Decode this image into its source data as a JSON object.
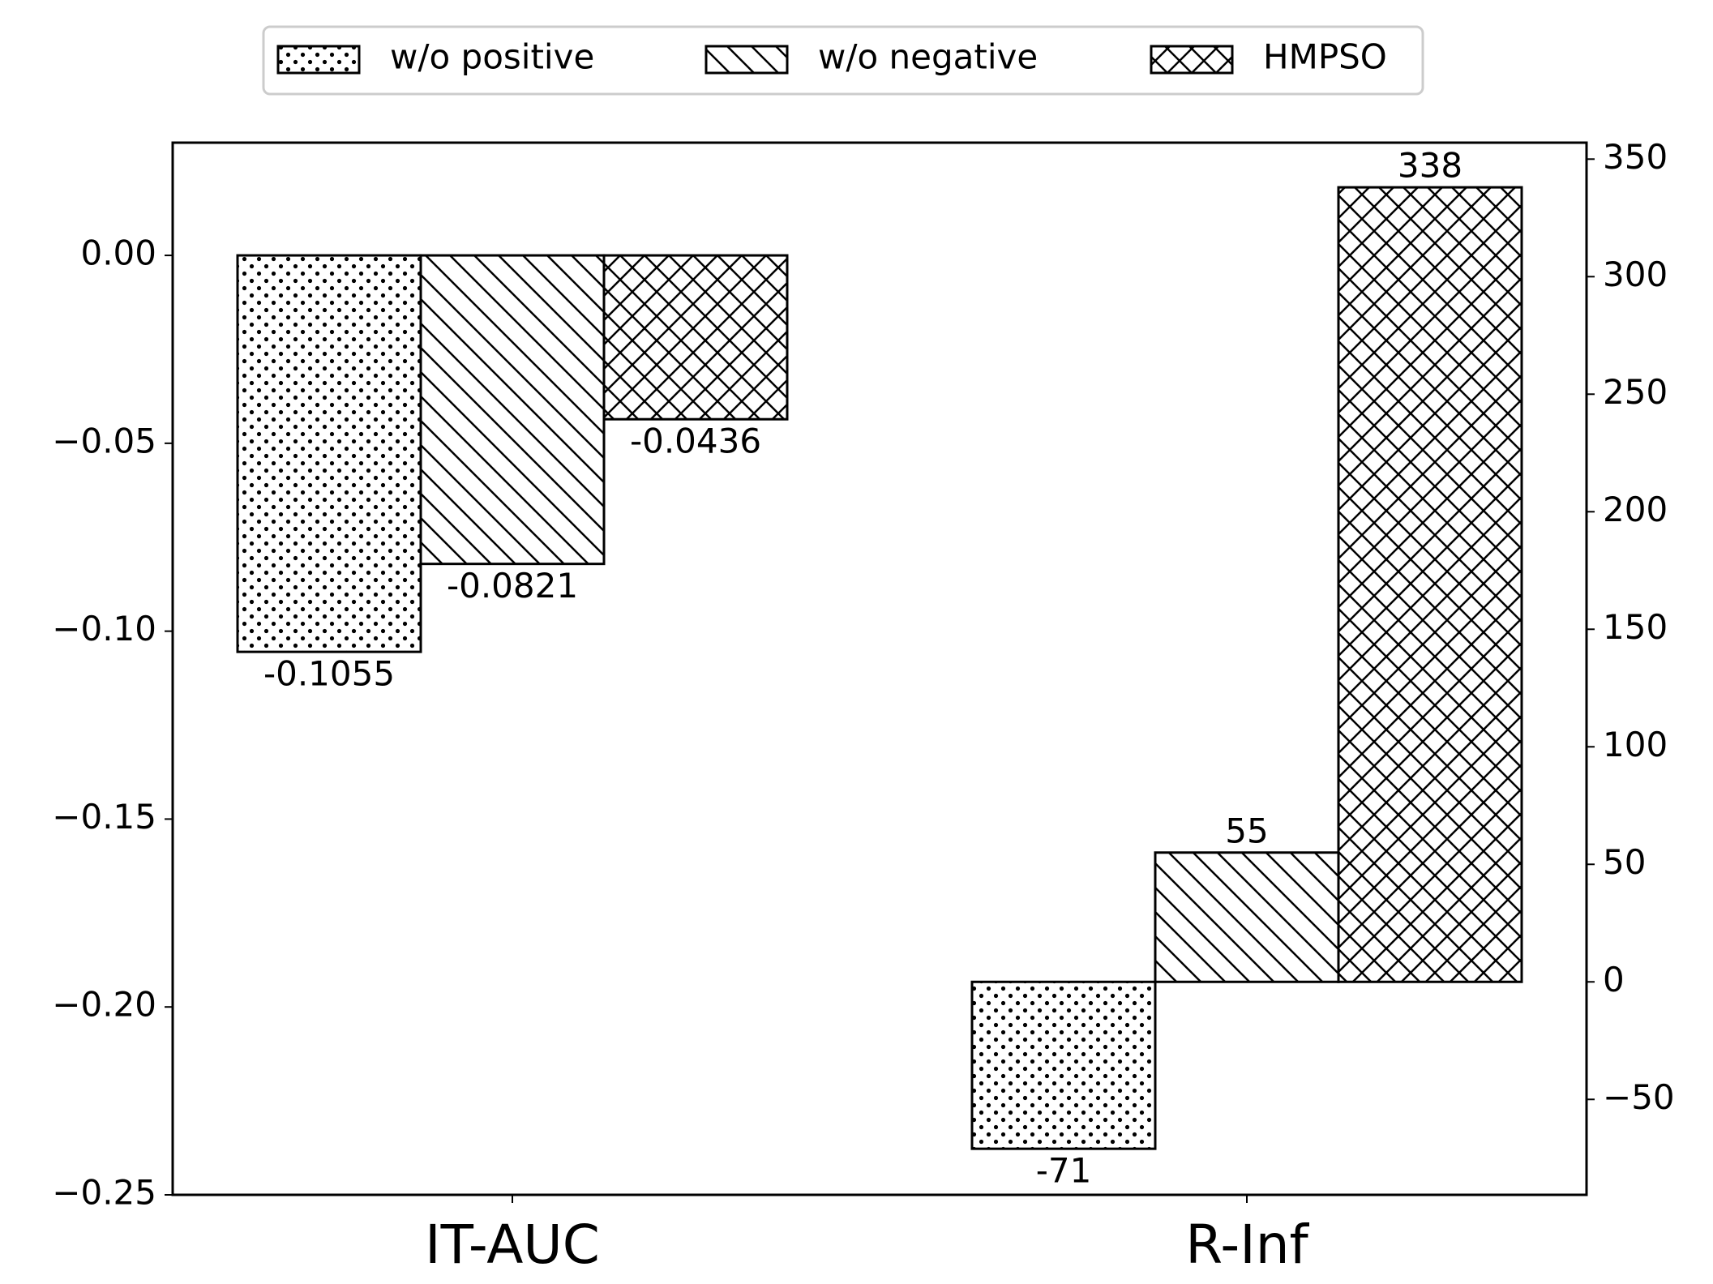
{
  "chart_data": {
    "type": "bar",
    "categories": [
      "IT-AUC",
      "R-Inf"
    ],
    "category_axes": [
      "y",
      "y2"
    ],
    "series": [
      {
        "name": "w/o positive",
        "color": "#000000",
        "hatch": "dots",
        "values": [
          -0.1055,
          -71
        ]
      },
      {
        "name": "w/o negative",
        "color": "#000000",
        "hatch": "diagonal",
        "values": [
          -0.0821,
          55
        ]
      },
      {
        "name": "HMPSO",
        "color": "#000000",
        "hatch": "cross",
        "values": [
          -0.0436,
          338
        ]
      }
    ],
    "ylim": [
      -0.25,
      0.03
    ],
    "yticks": [
      {
        "value": 0,
        "label": "0.00"
      },
      {
        "value": -0.05,
        "label": "−0.05"
      },
      {
        "value": -0.1,
        "label": "−0.10"
      },
      {
        "value": -0.15,
        "label": "−0.15"
      },
      {
        "value": -0.2,
        "label": "−0.20"
      },
      {
        "value": -0.25,
        "label": "−0.25"
      }
    ],
    "y2lim": [
      -90.6,
      357
    ],
    "y2ticks": [
      {
        "value": -50,
        "label": "−50"
      },
      0,
      50,
      100,
      150,
      200,
      250,
      300,
      350
    ],
    "grid": false,
    "legend": "top"
  }
}
